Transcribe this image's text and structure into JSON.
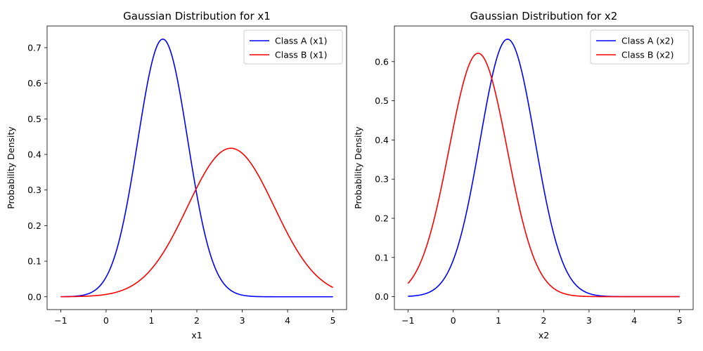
{
  "chart_data": [
    {
      "type": "line",
      "title": "Gaussian Distribution for x1",
      "xlabel": "x1",
      "ylabel": "Probability Density",
      "xlim": [
        -1.3,
        5.3
      ],
      "ylim": [
        -0.036,
        0.761
      ],
      "xticks": [
        -1,
        0,
        1,
        2,
        3,
        4,
        5
      ],
      "yticks": [
        0.0,
        0.1,
        0.2,
        0.3,
        0.4,
        0.5,
        0.6,
        0.7
      ],
      "legend_position": "top-right",
      "grid": false,
      "series": [
        {
          "name": "Class A (x1)",
          "color": "#0000ff",
          "mean": 1.25,
          "std": 0.551,
          "x_range": [
            -1,
            5
          ]
        },
        {
          "name": "Class B (x1)",
          "color": "#ff0000",
          "mean": 2.75,
          "std": 0.956,
          "x_range": [
            -1,
            5
          ]
        }
      ]
    },
    {
      "type": "line",
      "title": "Gaussian Distribution for x2",
      "xlabel": "x2",
      "ylabel": "Probability Density",
      "xlim": [
        -1.3,
        5.3
      ],
      "ylim": [
        -0.033,
        0.691
      ],
      "xticks": [
        -1,
        0,
        1,
        2,
        3,
        4,
        5
      ],
      "yticks": [
        0.0,
        0.1,
        0.2,
        0.3,
        0.4,
        0.5,
        0.6
      ],
      "legend_position": "top-right",
      "grid": false,
      "series": [
        {
          "name": "Class A (x2)",
          "color": "#0000ff",
          "mean": 1.2,
          "std": 0.607,
          "x_range": [
            -1,
            5
          ]
        },
        {
          "name": "Class B (x2)",
          "color": "#ff0000",
          "mean": 0.55,
          "std": 0.642,
          "x_range": [
            -1,
            5
          ]
        }
      ]
    }
  ]
}
